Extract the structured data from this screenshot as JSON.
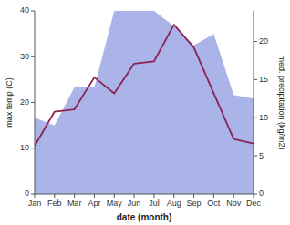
{
  "chart_data": {
    "type": "line",
    "categories": [
      "Jan",
      "Feb",
      "Mar",
      "Apr",
      "May",
      "Jun",
      "Jul",
      "Aug",
      "Sep",
      "Oct",
      "Nov",
      "Dec"
    ],
    "series": [
      {
        "type": "line",
        "color": "#8B2252",
        "values": [
          10.5,
          18.0,
          18.5,
          25.5,
          22.0,
          28.5,
          29.0,
          37.0,
          32.0,
          22.0,
          12.0,
          11.0
        ]
      },
      {
        "type": "area",
        "axis": "y2",
        "color": "#aab4e8",
        "values": [
          10.0,
          9.0,
          14.0,
          14.0,
          24.0,
          24.0,
          24.0,
          22.0,
          19.5,
          21.0,
          13.0,
          12.5
        ]
      }
    ],
    "xlabel": "date (month)",
    "ylabel": "max temp (C)",
    "y2label": "med. precipitation (kg/m2)",
    "ylim": [
      0,
      40
    ],
    "yticks": [
      0,
      10,
      20,
      30,
      40
    ],
    "y2lim": [
      0,
      24
    ],
    "y2ticks": [
      0,
      5,
      10,
      15,
      20
    ],
    "grid": false
  }
}
